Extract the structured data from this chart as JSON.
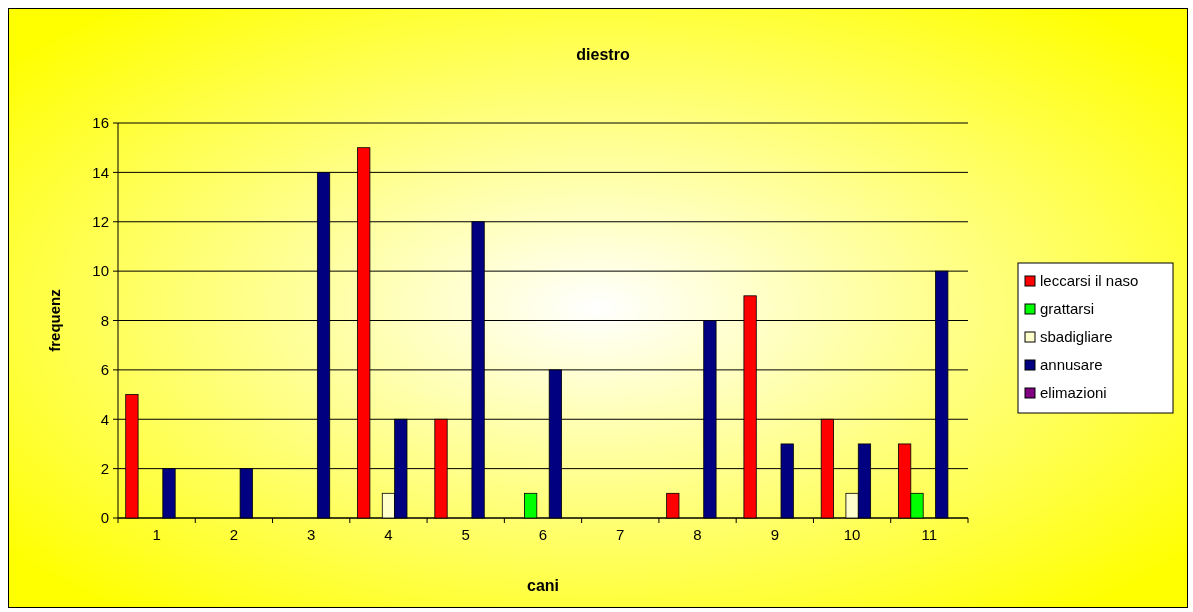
{
  "chart_data": {
    "type": "bar",
    "title": "diestro",
    "xlabel": "cani",
    "ylabel": "frequenz",
    "categories": [
      "1",
      "2",
      "3",
      "4",
      "5",
      "6",
      "7",
      "8",
      "9",
      "10",
      "11"
    ],
    "series": [
      {
        "name": "leccarsi il naso",
        "color": "#ff0000",
        "values": [
          5,
          0,
          0,
          15,
          4,
          0,
          0,
          1,
          9,
          4,
          3
        ]
      },
      {
        "name": "grattarsi",
        "color": "#00ff00",
        "values": [
          0,
          0,
          0,
          0,
          0,
          1,
          0,
          0,
          0,
          0,
          1
        ]
      },
      {
        "name": "sbadigliare",
        "color": "#ffffcc",
        "values": [
          0,
          0,
          0,
          1,
          0,
          0,
          0,
          0,
          0,
          1,
          0
        ]
      },
      {
        "name": "annusare",
        "color": "#000080",
        "values": [
          2,
          2,
          14,
          4,
          12,
          6,
          0,
          8,
          3,
          3,
          10
        ]
      },
      {
        "name": "elimazioni",
        "color": "#800080",
        "values": [
          0,
          0,
          0,
          0,
          0,
          0,
          0,
          0,
          0,
          0,
          0
        ]
      }
    ],
    "ylim": [
      0,
      16
    ],
    "yticks": [
      0,
      2,
      4,
      6,
      8,
      10,
      12,
      14,
      16
    ],
    "grid": "y",
    "legend": "right"
  }
}
